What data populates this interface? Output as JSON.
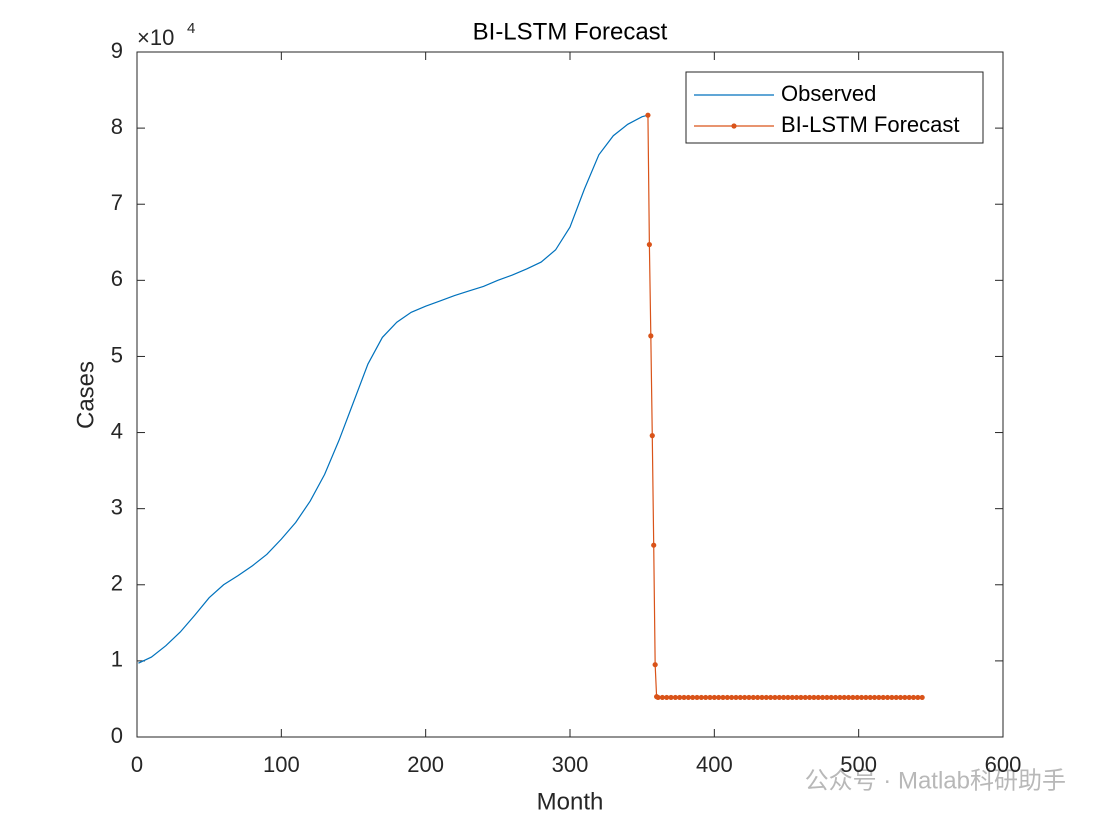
{
  "chart_data": {
    "type": "line",
    "title": "BI-LSTM Forecast",
    "xlabel": "Month",
    "ylabel": "Cases",
    "y_exponent_base": "×10",
    "y_exponent": "4",
    "xlim": [
      0,
      600
    ],
    "xticks": [
      0,
      100,
      200,
      300,
      400,
      500,
      600
    ],
    "ylim": [
      0,
      9
    ],
    "yticks": [
      0,
      1,
      2,
      3,
      4,
      5,
      6,
      7,
      8,
      9
    ],
    "legend": "top-right",
    "series": [
      {
        "name": "Observed",
        "color": "#0072bd",
        "marker": false,
        "x": [
          1,
          10,
          20,
          30,
          40,
          50,
          60,
          70,
          80,
          90,
          100,
          110,
          120,
          130,
          140,
          150,
          160,
          170,
          180,
          190,
          200,
          210,
          220,
          230,
          240,
          250,
          260,
          270,
          280,
          290,
          300,
          310,
          320,
          330,
          340,
          350,
          354
        ],
        "values": [
          0.97,
          1.05,
          1.2,
          1.38,
          1.6,
          1.83,
          2.0,
          2.12,
          2.25,
          2.4,
          2.6,
          2.82,
          3.1,
          3.45,
          3.9,
          4.4,
          4.9,
          5.25,
          5.45,
          5.58,
          5.66,
          5.73,
          5.8,
          5.86,
          5.92,
          6.0,
          6.07,
          6.15,
          6.24,
          6.4,
          6.7,
          7.2,
          7.65,
          7.9,
          8.05,
          8.15,
          8.17
        ]
      },
      {
        "name": "BI-LSTM Forecast",
        "color": "#d95319",
        "marker": true,
        "x": [
          354,
          355,
          356,
          357,
          358,
          359,
          360,
          361,
          364,
          367,
          370,
          373,
          376,
          379,
          382,
          385,
          388,
          391,
          394,
          397,
          400,
          403,
          406,
          409,
          412,
          415,
          418,
          421,
          424,
          427,
          430,
          433,
          436,
          439,
          442,
          445,
          448,
          451,
          454,
          457,
          460,
          463,
          466,
          469,
          472,
          475,
          478,
          481,
          484,
          487,
          490,
          493,
          496,
          499,
          502,
          505,
          508,
          511,
          514,
          517,
          520,
          523,
          526,
          529,
          532,
          535,
          538,
          541,
          544
        ],
        "values": [
          8.17,
          6.47,
          5.27,
          3.96,
          2.52,
          0.95,
          0.53,
          0.52,
          0.52,
          0.52,
          0.52,
          0.52,
          0.52,
          0.52,
          0.52,
          0.52,
          0.52,
          0.52,
          0.52,
          0.52,
          0.52,
          0.52,
          0.52,
          0.52,
          0.52,
          0.52,
          0.52,
          0.52,
          0.52,
          0.52,
          0.52,
          0.52,
          0.52,
          0.52,
          0.52,
          0.52,
          0.52,
          0.52,
          0.52,
          0.52,
          0.52,
          0.52,
          0.52,
          0.52,
          0.52,
          0.52,
          0.52,
          0.52,
          0.52,
          0.52,
          0.52,
          0.52,
          0.52,
          0.52,
          0.52,
          0.52,
          0.52,
          0.52,
          0.52,
          0.52,
          0.52,
          0.52,
          0.52,
          0.52,
          0.52,
          0.52,
          0.52,
          0.52,
          0.52
        ]
      }
    ]
  },
  "watermark": "公众号 · Matlab科研助手"
}
